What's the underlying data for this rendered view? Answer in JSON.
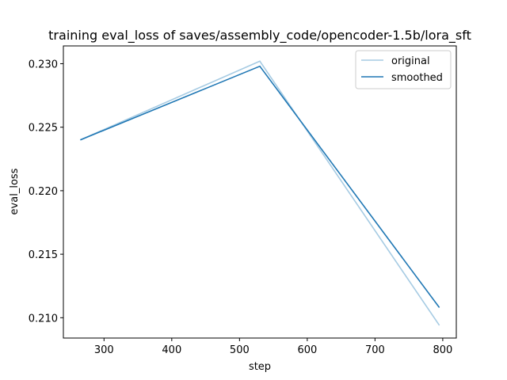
{
  "chart_data": {
    "type": "line",
    "title": "training eval_loss of saves/assembly_code/opencoder-1.5b/lora_sft",
    "xlabel": "step",
    "ylabel": "eval_loss",
    "xlim": [
      240,
      820
    ],
    "ylim": [
      0.2084,
      0.2314
    ],
    "x_ticks": [
      300,
      400,
      500,
      600,
      700,
      800
    ],
    "x_tick_labels": [
      "300",
      "400",
      "500",
      "600",
      "700",
      "800"
    ],
    "y_ticks": [
      0.21,
      0.215,
      0.22,
      0.225,
      0.23
    ],
    "y_tick_labels": [
      "0.210",
      "0.215",
      "0.220",
      "0.225",
      "0.230"
    ],
    "grid": false,
    "legend_position": "top-right",
    "x": [
      265,
      530,
      795
    ],
    "series": [
      {
        "name": "original",
        "color": "#a6cbe3",
        "values": [
          0.224,
          0.2302,
          0.2094
        ]
      },
      {
        "name": "smoothed",
        "color": "#1f77b4",
        "values": [
          0.224,
          0.2298,
          0.2108
        ]
      }
    ]
  }
}
